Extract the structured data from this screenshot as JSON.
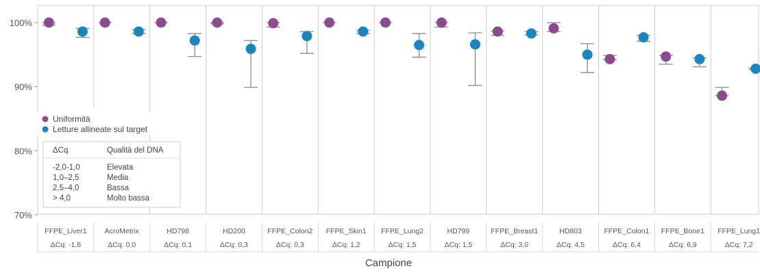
{
  "chart_data": {
    "type": "scatter",
    "xlabel": "Campione",
    "ylabel": "",
    "ylim": [
      70,
      100
    ],
    "yticks": [
      {
        "value": 100,
        "label": "100%"
      },
      {
        "value": 90,
        "label": "90%"
      },
      {
        "value": 80,
        "label": "80%"
      },
      {
        "value": 70,
        "label": "70%"
      }
    ],
    "categories": [
      {
        "name": "FFPE_Liver1",
        "dcq": "ΔCq: -1,8"
      },
      {
        "name": "AcroMetrix",
        "dcq": "ΔCq: 0,0"
      },
      {
        "name": "HD798",
        "dcq": "ΔCq: 0,1"
      },
      {
        "name": "HD200",
        "dcq": "ΔCq: 0,3"
      },
      {
        "name": "FFPE_Colon2",
        "dcq": "ΔCq: 0,3"
      },
      {
        "name": "FFPE_Skin1",
        "dcq": "ΔCq: 1,2"
      },
      {
        "name": "FFPE_Lung2",
        "dcq": "ΔCq: 1,5"
      },
      {
        "name": "HD799",
        "dcq": "ΔCq: 1,5"
      },
      {
        "name": "FFPE_Breast1",
        "dcq": "ΔCq: 3,0"
      },
      {
        "name": "HD803",
        "dcq": "ΔCq: 4,5"
      },
      {
        "name": "FFPE_Colon1",
        "dcq": "ΔCq: 6,4"
      },
      {
        "name": "FFPE_Bone1",
        "dcq": "ΔCq: 6,9"
      },
      {
        "name": "FFPE_Lung1",
        "dcq": "ΔCq: 7,2"
      }
    ],
    "series": [
      {
        "name": "Uniformità",
        "color": "#8e4a8e",
        "values": [
          100.0,
          100.0,
          100.0,
          100.0,
          99.9,
          100.0,
          100.0,
          100.0,
          98.6,
          99.1,
          94.3,
          94.7,
          88.6
        ],
        "err_low": [
          99.6,
          100.0,
          100.0,
          99.8,
          99.3,
          100.0,
          100.0,
          99.3,
          98.0,
          98.6,
          94.2,
          93.5,
          88.6
        ],
        "err_high": [
          100.0,
          100.0,
          100.0,
          100.0,
          100.0,
          100.0,
          100.0,
          100.0,
          98.7,
          100.0,
          94.9,
          94.9,
          89.9
        ]
      },
      {
        "name": "Letture allineate sul target",
        "color": "#1a86c0",
        "values": [
          98.6,
          98.6,
          97.2,
          95.9,
          97.9,
          98.6,
          96.5,
          96.6,
          98.3,
          95.0,
          97.7,
          94.3,
          92.8
        ],
        "err_low": [
          97.7,
          98.3,
          94.7,
          89.9,
          95.2,
          98.3,
          94.6,
          90.2,
          98.1,
          92.2,
          97.1,
          93.1,
          92.7
        ],
        "err_high": [
          99.1,
          98.9,
          98.3,
          97.2,
          98.6,
          98.8,
          98.3,
          98.4,
          98.6,
          96.7,
          98.0,
          94.5,
          92.9
        ]
      }
    ],
    "legend_position": "left",
    "quality_table": {
      "header": [
        "ΔCq",
        "Qualità del DNA"
      ],
      "rows": [
        [
          "-2,0-1,0",
          "Elevata"
        ],
        [
          "1,0–2,5",
          "Media"
        ],
        [
          "2,5–4,0",
          "Bassa"
        ],
        [
          "> 4,0",
          "Molto bassa"
        ]
      ]
    }
  }
}
